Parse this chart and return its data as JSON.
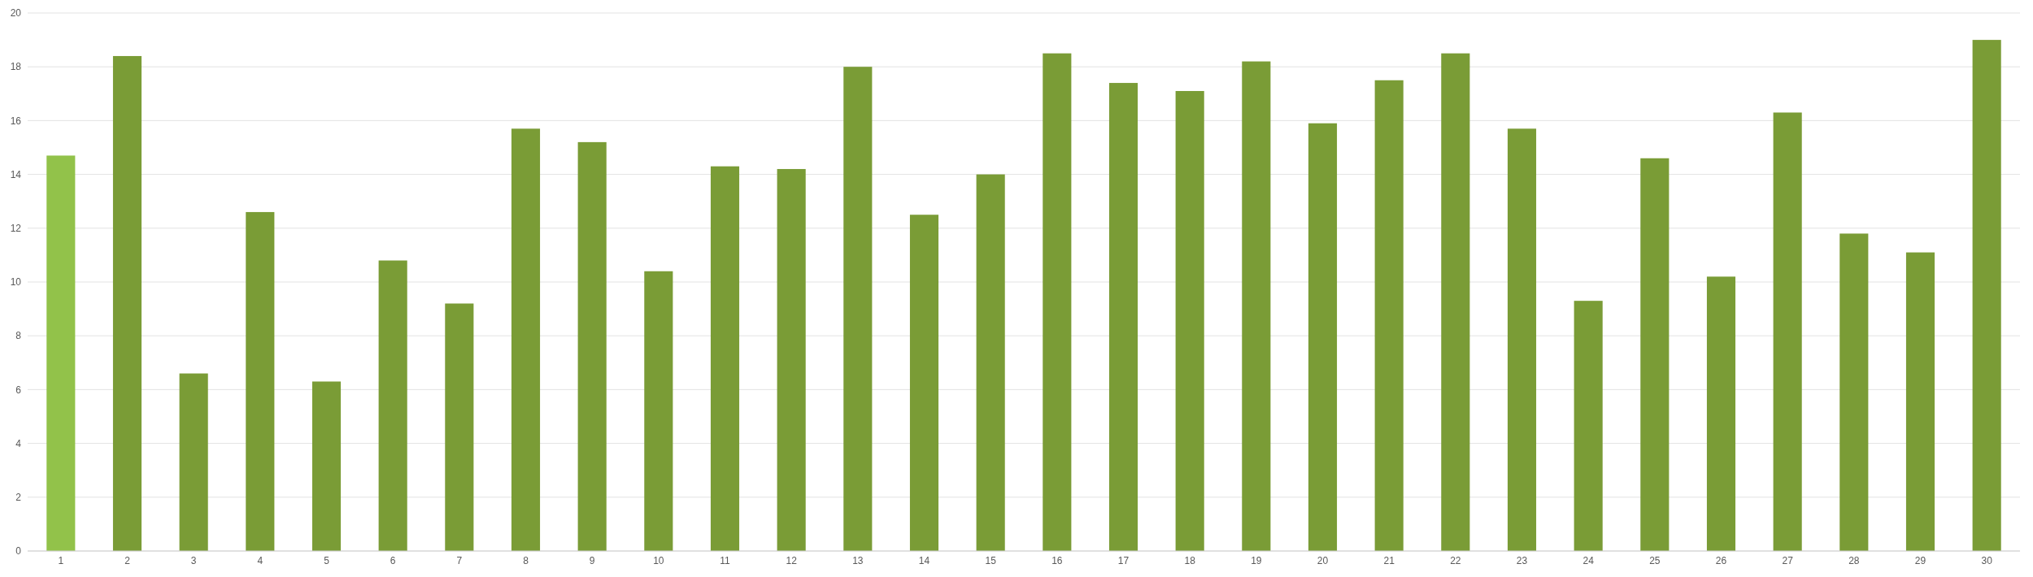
{
  "chart_data": {
    "type": "bar",
    "categories": [
      "1",
      "2",
      "3",
      "4",
      "5",
      "6",
      "7",
      "8",
      "9",
      "10",
      "11",
      "12",
      "13",
      "14",
      "15",
      "16",
      "17",
      "18",
      "19",
      "20",
      "21",
      "22",
      "23",
      "24",
      "25",
      "26",
      "27",
      "28",
      "29",
      "30"
    ],
    "values": [
      14.7,
      18.4,
      6.6,
      12.6,
      6.3,
      10.8,
      9.2,
      15.7,
      15.2,
      10.4,
      14.3,
      14.2,
      18.0,
      12.5,
      14.0,
      18.5,
      17.4,
      17.1,
      18.2,
      15.9,
      17.5,
      18.5,
      15.7,
      9.3,
      14.6,
      10.2,
      16.3,
      11.8,
      11.1,
      19.0
    ],
    "colors": [
      "#92c24a",
      "#7a9c36",
      "#7a9c36",
      "#7a9c36",
      "#7a9c36",
      "#7a9c36",
      "#7a9c36",
      "#7a9c36",
      "#7a9c36",
      "#7a9c36",
      "#7a9c36",
      "#7a9c36",
      "#7a9c36",
      "#7a9c36",
      "#7a9c36",
      "#7a9c36",
      "#7a9c36",
      "#7a9c36",
      "#7a9c36",
      "#7a9c36",
      "#7a9c36",
      "#7a9c36",
      "#7a9c36",
      "#7a9c36",
      "#7a9c36",
      "#7a9c36",
      "#7a9c36",
      "#7a9c36",
      "#7a9c36",
      "#7a9c36"
    ],
    "ylim": [
      0,
      20
    ],
    "yticks": [
      0,
      2,
      4,
      6,
      8,
      10,
      12,
      14,
      16,
      18,
      20
    ],
    "grid": "y"
  }
}
